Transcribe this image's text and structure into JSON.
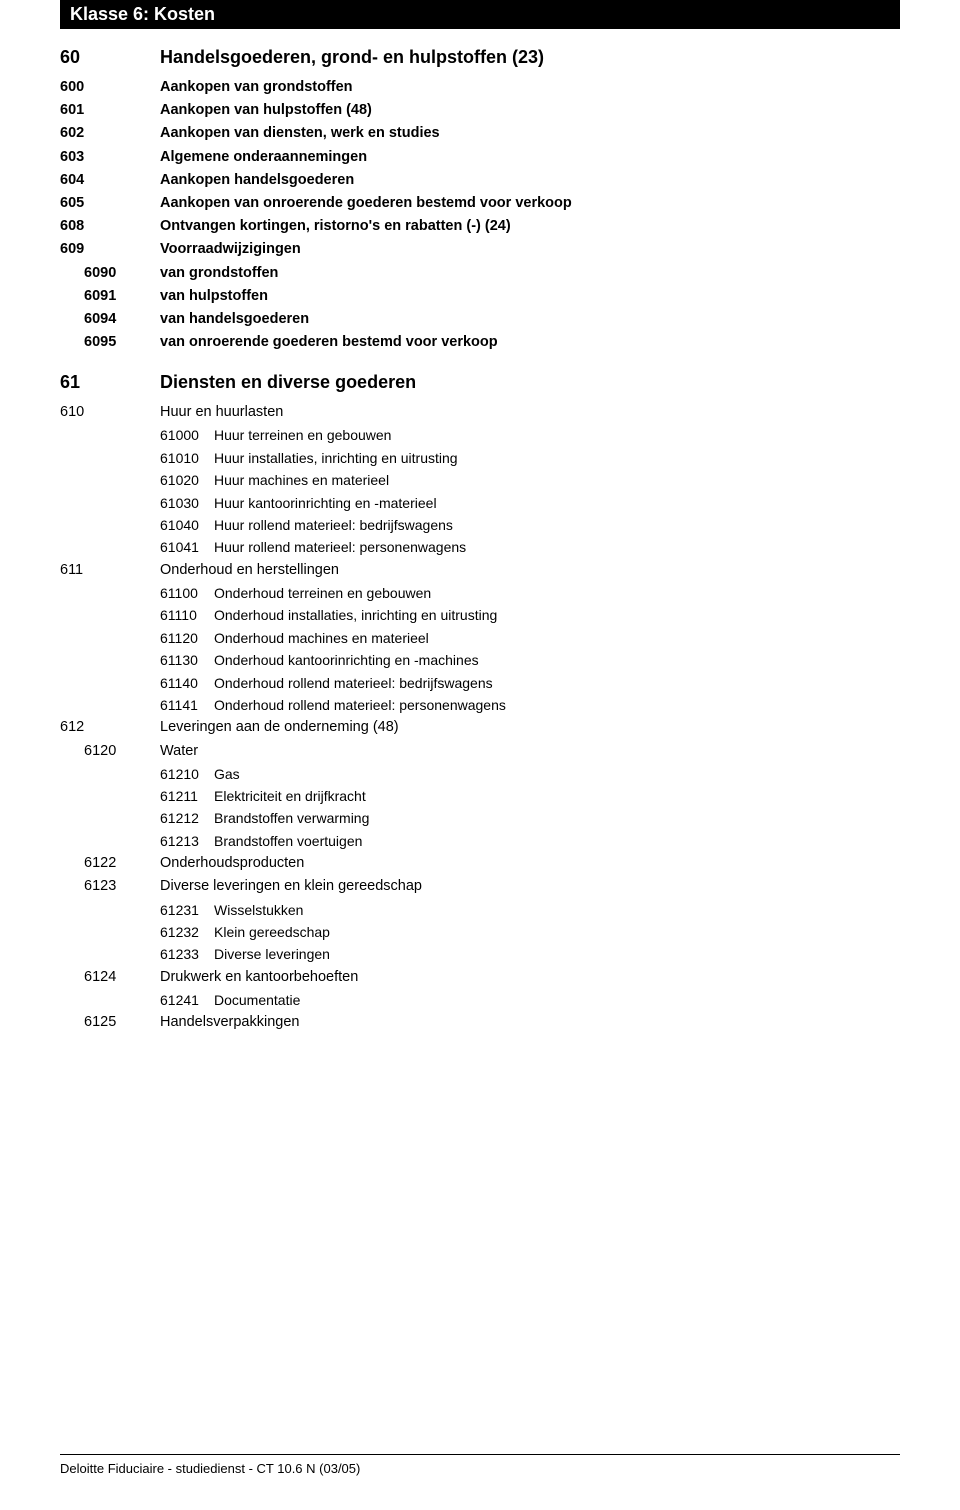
{
  "header": "Klasse 6:  Kosten",
  "section60": {
    "code": "60",
    "title": "Handelsgoederen, grond- en hulpstoffen (23)",
    "rows": [
      {
        "code": "600",
        "text": "Aankopen van grondstoffen"
      },
      {
        "code": "601",
        "text": "Aankopen van hulpstoffen (48)"
      },
      {
        "code": "602",
        "text": "Aankopen van diensten, werk en studies"
      },
      {
        "code": "603",
        "text": "Algemene onderaannemingen"
      },
      {
        "code": "604",
        "text": "Aankopen handelsgoederen"
      },
      {
        "code": "605",
        "text": "Aankopen van onroerende goederen bestemd voor verkoop"
      },
      {
        "code": "608",
        "text": "Ontvangen kortingen, ristorno's en rabatten (-) (24)"
      },
      {
        "code": "609",
        "text": "Voorraadwijzigingen"
      }
    ],
    "subrows": [
      {
        "code": "6090",
        "text": "van grondstoffen"
      },
      {
        "code": "6091",
        "text": "van hulpstoffen"
      },
      {
        "code": "6094",
        "text": "van handelsgoederen"
      },
      {
        "code": "6095",
        "text": "van onroerende goederen bestemd voor verkoop"
      }
    ]
  },
  "section61": {
    "code": "61",
    "title": "Diensten en diverse goederen",
    "g610": {
      "code": "610",
      "title": "Huur en huurlasten",
      "rows": [
        {
          "code": "61000",
          "text": "Huur terreinen en gebouwen"
        },
        {
          "code": "61010",
          "text": "Huur installaties, inrichting en uitrusting"
        },
        {
          "code": "61020",
          "text": "Huur machines en materieel"
        },
        {
          "code": "61030",
          "text": "Huur kantoorinrichting en -materieel"
        },
        {
          "code": "61040",
          "text": "Huur rollend materieel: bedrijfswagens"
        },
        {
          "code": "61041",
          "text": "Huur rollend materieel: personenwagens"
        }
      ]
    },
    "g611": {
      "code": "611",
      "title": "Onderhoud en herstellingen",
      "rows": [
        {
          "code": "61100",
          "text": "Onderhoud terreinen en gebouwen"
        },
        {
          "code": "61110",
          "text": "Onderhoud installaties, inrichting en uitrusting"
        },
        {
          "code": "61120",
          "text": "Onderhoud machines en materieel"
        },
        {
          "code": "61130",
          "text": "Onderhoud kantoorinrichting en -machines"
        },
        {
          "code": "61140",
          "text": "Onderhoud rollend materieel: bedrijfswagens"
        },
        {
          "code": "61141",
          "text": "Onderhoud rollend materieel: personenwagens"
        }
      ]
    },
    "g612": {
      "code": "612",
      "title": "Leveringen aan de onderneming (48)",
      "g6120": {
        "code": "6120",
        "title": "Water",
        "rows": [
          {
            "code": "61210",
            "text": "Gas"
          },
          {
            "code": "61211",
            "text": "Elektriciteit en drijfkracht"
          },
          {
            "code": "61212",
            "text": "Brandstoffen verwarming"
          },
          {
            "code": "61213",
            "text": "Brandstoffen voertuigen"
          }
        ]
      },
      "g6122": {
        "code": "6122",
        "title": "Onderhoudsproducten"
      },
      "g6123": {
        "code": "6123",
        "title": "Diverse leveringen en klein gereedschap",
        "rows": [
          {
            "code": "61231",
            "text": "Wisselstukken"
          },
          {
            "code": "61232",
            "text": "Klein gereedschap"
          },
          {
            "code": "61233",
            "text": "Diverse leveringen"
          }
        ]
      },
      "g6124": {
        "code": "6124",
        "title": "Drukwerk en kantoorbehoeften",
        "rows": [
          {
            "code": "61241",
            "text": "Documentatie"
          }
        ]
      },
      "g6125": {
        "code": "6125",
        "title": "Handelsverpakkingen"
      }
    }
  },
  "footer": "Deloitte Fiduciaire - studiedienst - CT 10.6 N (03/05)"
}
